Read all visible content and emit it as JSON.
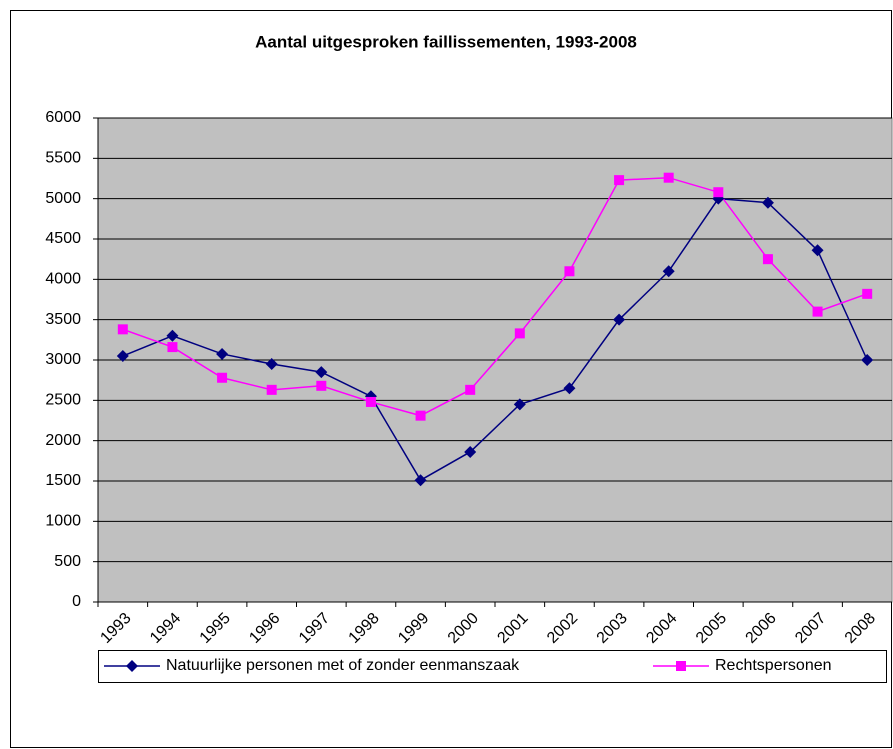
{
  "chart_data": {
    "type": "line",
    "title": "Aantal uitgesproken faillissementen, 1993-2008",
    "categories": [
      "1993",
      "1994",
      "1995",
      "1996",
      "1997",
      "1998",
      "1999",
      "2000",
      "2001",
      "2002",
      "2003",
      "2004",
      "2005",
      "2006",
      "2007",
      "2008"
    ],
    "series": [
      {
        "name": "Natuurlijke personen met of zonder eenmanszaak",
        "color": "#000080",
        "marker": "diamond",
        "values": [
          3050,
          3300,
          3075,
          2950,
          2850,
          2550,
          1510,
          1860,
          2450,
          2650,
          3500,
          4100,
          5000,
          4950,
          4360,
          3000
        ]
      },
      {
        "name": "Rechtspersonen",
        "color": "#ff00ff",
        "marker": "square",
        "values": [
          3380,
          3160,
          2780,
          2630,
          2680,
          2480,
          2310,
          2630,
          3330,
          4100,
          5230,
          5260,
          5080,
          4250,
          3600,
          3820
        ]
      }
    ],
    "ylim": [
      0,
      6000
    ],
    "yticks": [
      0,
      500,
      1000,
      1500,
      2000,
      2500,
      3000,
      3500,
      4000,
      4500,
      5000,
      5500,
      6000
    ],
    "grid": true,
    "legend": "bottom"
  }
}
